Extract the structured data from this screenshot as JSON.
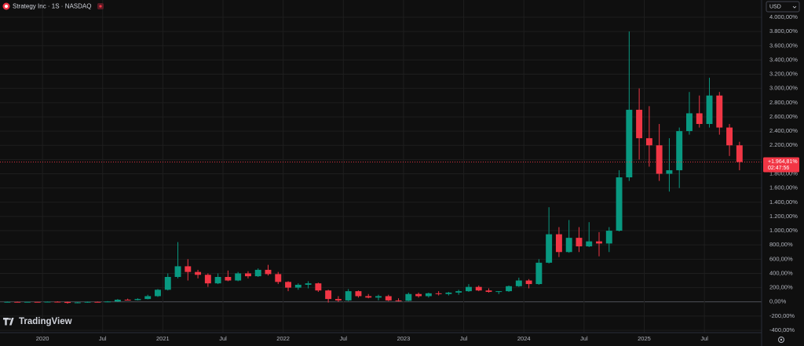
{
  "chart_data": {
    "type": "candlestick",
    "title": "Strategy Inc · 1S · NASDAQ",
    "currency": "USD",
    "watermark": "TradingView",
    "up_color": "#089981",
    "down_color": "#f23645",
    "grid": true,
    "xlim": [
      "2019-09",
      "2025-12"
    ],
    "ylim": [
      -400,
      4000
    ],
    "xticks": [
      {
        "value": "2020-01",
        "label": "2020"
      },
      {
        "value": "2020-07",
        "label": "Jul"
      },
      {
        "value": "2021-01",
        "label": "2021"
      },
      {
        "value": "2021-07",
        "label": "Jul"
      },
      {
        "value": "2022-01",
        "label": "2022"
      },
      {
        "value": "2022-07",
        "label": "Jul"
      },
      {
        "value": "2023-01",
        "label": "2023"
      },
      {
        "value": "2023-07",
        "label": "Jul"
      },
      {
        "value": "2024-01",
        "label": "2024"
      },
      {
        "value": "2024-07",
        "label": "Jul"
      },
      {
        "value": "2025-01",
        "label": "2025"
      },
      {
        "value": "2025-07",
        "label": "Jul"
      }
    ],
    "yticks": [
      {
        "value": -400,
        "label": "-400,00%"
      },
      {
        "value": -200,
        "label": "-200,00%"
      },
      {
        "value": 0,
        "label": "0,00%"
      },
      {
        "value": 200,
        "label": "200,00%"
      },
      {
        "value": 400,
        "label": "400,00%"
      },
      {
        "value": 600,
        "label": "600,00%"
      },
      {
        "value": 800,
        "label": "800,00%"
      },
      {
        "value": 1000,
        "label": "1.000,00%"
      },
      {
        "value": 1200,
        "label": "1.200,00%"
      },
      {
        "value": 1400,
        "label": "1.400,00%"
      },
      {
        "value": 1600,
        "label": "1.600,00%"
      },
      {
        "value": 1800,
        "label": "1.800,00%"
      },
      {
        "value": 2000,
        "label": "2.000,00%"
      },
      {
        "value": 2200,
        "label": "2.200,00%"
      },
      {
        "value": 2400,
        "label": "2.400,00%"
      },
      {
        "value": 2600,
        "label": "2.600,00%"
      },
      {
        "value": 2800,
        "label": "2.800,00%"
      },
      {
        "value": 3000,
        "label": "3.000,00%"
      },
      {
        "value": 3200,
        "label": "3.200,00%"
      },
      {
        "value": 3400,
        "label": "3.400,00%"
      },
      {
        "value": 3600,
        "label": "3.600,00%"
      },
      {
        "value": 3800,
        "label": "3.800,00%"
      },
      {
        "value": 4000,
        "label": "4.000,00%"
      }
    ],
    "last_price": {
      "value": 1964.81,
      "label": "+1.964,81%",
      "countdown": "02:47:56"
    },
    "x": [
      "2019-09",
      "2019-10",
      "2019-11",
      "2019-12",
      "2020-01",
      "2020-02",
      "2020-03",
      "2020-04",
      "2020-05",
      "2020-06",
      "2020-07",
      "2020-08",
      "2020-09",
      "2020-10",
      "2020-11",
      "2020-12",
      "2021-01",
      "2021-02",
      "2021-03",
      "2021-04",
      "2021-05",
      "2021-06",
      "2021-07",
      "2021-08",
      "2021-09",
      "2021-10",
      "2021-11",
      "2021-12",
      "2022-01",
      "2022-02",
      "2022-03",
      "2022-04",
      "2022-05",
      "2022-06",
      "2022-07",
      "2022-08",
      "2022-09",
      "2022-10",
      "2022-11",
      "2022-12",
      "2023-01",
      "2023-02",
      "2023-03",
      "2023-04",
      "2023-05",
      "2023-06",
      "2023-07",
      "2023-08",
      "2023-09",
      "2023-10",
      "2023-11",
      "2023-12",
      "2024-01",
      "2024-02",
      "2024-03",
      "2024-04",
      "2024-05",
      "2024-06",
      "2024-07",
      "2024-08",
      "2024-09",
      "2024-10",
      "2024-11",
      "2024-12",
      "2025-01",
      "2025-02",
      "2025-03",
      "2025-04",
      "2025-05",
      "2025-06",
      "2025-07",
      "2025-08",
      "2025-09",
      "2025-10"
    ],
    "open": [
      0,
      0,
      -2,
      0,
      -3,
      2,
      0,
      -15,
      -8,
      0,
      -2,
      5,
      30,
      25,
      40,
      80,
      170,
      350,
      500,
      420,
      380,
      260,
      350,
      300,
      400,
      360,
      450,
      390,
      280,
      200,
      240,
      260,
      160,
      40,
      20,
      150,
      80,
      60,
      80,
      20,
      15,
      110,
      80,
      120,
      110,
      130,
      150,
      210,
      160,
      140,
      150,
      220,
      300,
      250,
      550,
      950,
      700,
      900,
      780,
      850,
      820,
      1000,
      1750,
      2700,
      2300,
      2200,
      1800,
      1850,
      2400,
      2650,
      2500,
      2900,
      2450,
      2200
    ],
    "high": [
      5,
      5,
      3,
      2,
      5,
      8,
      5,
      0,
      5,
      5,
      10,
      40,
      45,
      50,
      100,
      180,
      400,
      840,
      600,
      450,
      400,
      400,
      440,
      420,
      430,
      470,
      520,
      420,
      290,
      260,
      290,
      270,
      170,
      80,
      180,
      160,
      110,
      100,
      100,
      50,
      130,
      130,
      130,
      150,
      140,
      170,
      250,
      230,
      190,
      150,
      230,
      340,
      320,
      600,
      1330,
      1050,
      1150,
      1050,
      1120,
      980,
      1050,
      1850,
      3800,
      3000,
      2750,
      2500,
      2300,
      2450,
      2950,
      2900,
      3150,
      2950,
      2500,
      2250
    ],
    "low": [
      -5,
      -5,
      -6,
      -5,
      -8,
      -5,
      -25,
      -20,
      -12,
      -5,
      -5,
      0,
      20,
      20,
      35,
      70,
      160,
      330,
      300,
      330,
      210,
      250,
      290,
      290,
      330,
      350,
      370,
      250,
      150,
      170,
      190,
      140,
      -10,
      0,
      10,
      60,
      50,
      20,
      10,
      5,
      10,
      60,
      60,
      90,
      90,
      100,
      140,
      150,
      130,
      110,
      140,
      210,
      190,
      240,
      540,
      630,
      690,
      700,
      770,
      640,
      700,
      990,
      1700,
      2000,
      1900,
      1700,
      1550,
      1600,
      2350,
      2450,
      2450,
      2350,
      2050,
      1850
    ],
    "close": [
      0,
      -2,
      0,
      -3,
      2,
      0,
      -15,
      -8,
      0,
      -2,
      5,
      30,
      25,
      40,
      80,
      170,
      350,
      500,
      420,
      380,
      260,
      350,
      300,
      400,
      360,
      450,
      390,
      280,
      200,
      240,
      260,
      160,
      40,
      20,
      150,
      80,
      60,
      80,
      20,
      15,
      110,
      80,
      120,
      110,
      130,
      150,
      210,
      160,
      140,
      150,
      220,
      300,
      250,
      550,
      950,
      700,
      900,
      780,
      850,
      820,
      1000,
      1750,
      2700,
      2300,
      2200,
      1800,
      1850,
      2400,
      2650,
      2500,
      2900,
      2450,
      2200,
      1965
    ]
  }
}
